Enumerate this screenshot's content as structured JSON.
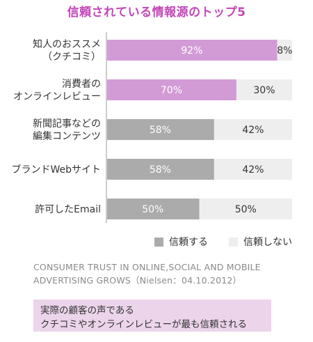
{
  "title": "信頼されている情報源のトップ5",
  "chart_data": {
    "type": "bar",
    "stacked": true,
    "orientation": "horizontal",
    "categories": [
      [
        "知人のおススメ",
        "（クチコミ）"
      ],
      [
        "消費者の",
        "オンラインレビュー"
      ],
      [
        "新聞記事などの",
        "編集コンテンツ"
      ],
      [
        "ブランドWebサイト"
      ],
      [
        "許可したEmail"
      ]
    ],
    "series": [
      {
        "name": "信頼する",
        "values": [
          92,
          70,
          58,
          58,
          50
        ],
        "value_labels": [
          "92%",
          "70%",
          "58%",
          "58%",
          "50%"
        ]
      },
      {
        "name": "信頼しない",
        "values": [
          8,
          30,
          42,
          42,
          50
        ],
        "value_labels": [
          "8%",
          "30%",
          "42%",
          "42%",
          "50%"
        ]
      }
    ],
    "highlight_categories": [
      0,
      1
    ],
    "xlim": [
      0,
      100
    ],
    "colors": {
      "trust_highlight": "#d39bd6",
      "trust": "#ababab",
      "distrust": "#eeeeee",
      "trust_label": "#ffffff",
      "distrust_label": "#333333"
    }
  },
  "legend": {
    "trust": {
      "label": "信頼する",
      "color": "#ababab"
    },
    "distrust": {
      "label": "信頼しない",
      "color": "#eeeeee"
    }
  },
  "source_lines": [
    "CONSUMER TRUST IN ONLINE,SOCIAL AND MOBILE",
    "ADVERTISING GROWS（Nielsen：04.10.2012）"
  ],
  "note_lines": [
    "実際の顧客の声である",
    "クチコミやオンラインレビューが最も信頼される"
  ]
}
